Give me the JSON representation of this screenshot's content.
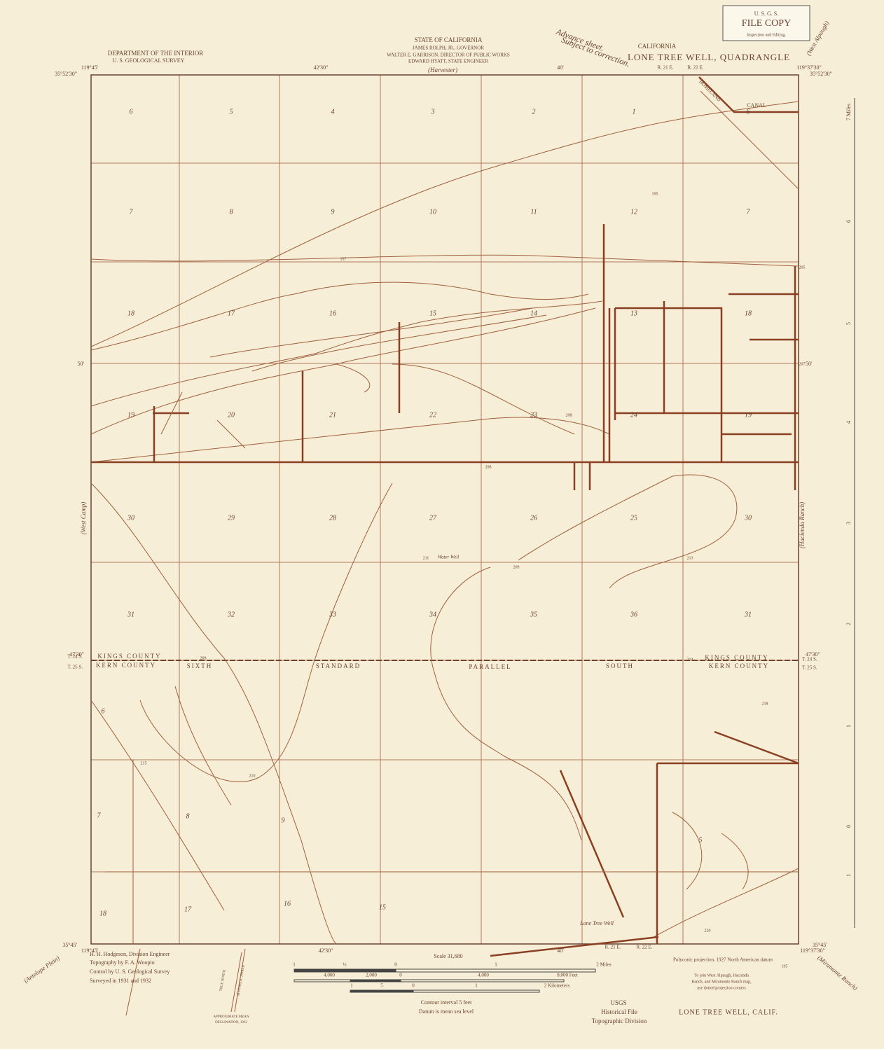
{
  "header": {
    "left": [
      "DEPARTMENT OF THE INTERIOR",
      "U. S. GEOLOGICAL SURVEY"
    ],
    "center": [
      "STATE OF CALIFORNIA",
      "JAMES ROLPH, JR., GOVERNOR",
      "WALTER E. GARRISON, DIRECTOR OF PUBLIC WORKS",
      "EDWARD HYATT, STATE ENGINEER"
    ],
    "state": "CALIFORNIA",
    "title": "LONE TREE WELL, QUADRANGLE",
    "advance": [
      "Advance sheet.",
      "Subject to correction."
    ],
    "stamp": [
      "U. S. G. S.",
      "FILE COPY",
      "Inspection and Editing."
    ]
  },
  "coordinates": [
    "119°45'",
    "35°52'30\"",
    "42'30\"",
    "40'",
    "119°37'30\"",
    "35°52'30\"",
    "50'",
    "50'",
    "47'30\"",
    "47'30\"",
    "35°45'",
    "119°45'",
    "42'30\"",
    "40'",
    "119°37'30\"",
    "35°45'"
  ],
  "townships": [
    "T. 24 S.",
    "T. 25 S.",
    "T. 24 S.",
    "T. 25 S.",
    "R. 21 E.",
    "R. 22 E.",
    "R. 21 E.",
    "R. 22 E."
  ],
  "sections": [
    [
      "6",
      "5",
      "4",
      "3",
      "2",
      "1",
      "6"
    ],
    [
      "7",
      "8",
      "9",
      "10",
      "11",
      "12",
      "7"
    ],
    [
      "18",
      "17",
      "16",
      "15",
      "14",
      "13",
      "18"
    ],
    [
      "19",
      "20",
      "21",
      "22",
      "23",
      "24",
      "19"
    ],
    [
      "30",
      "29",
      "28",
      "27",
      "26",
      "25",
      "30"
    ],
    [
      "31",
      "32",
      "33",
      "34",
      "35",
      "36",
      "31"
    ]
  ],
  "kern_sections": [
    "6",
    "7",
    "8",
    "9",
    "18",
    "17",
    "16",
    "15",
    "5"
  ],
  "places": [
    "(Harvester)",
    "(West Camp)",
    "(Hacienda Ranch)",
    "(Antelope Plain)",
    "(Miramonte Ranch)",
    "(West Alpaugh)"
  ],
  "labels": [
    "HOMELAND",
    "CANAL",
    "KINGS COUNTY",
    "KERN COUNTY",
    "KINGS COUNTY",
    "KERN COUNTY",
    "SIXTH",
    "STANDARD",
    "PARALLEL",
    "SOUTH",
    "Water Well",
    "Lone Tree Well"
  ],
  "elevations": [
    "195",
    "197",
    "195",
    "205",
    "207",
    "208",
    "208",
    "209",
    "209",
    "211",
    "213",
    "214",
    "210",
    "215",
    "218",
    "220"
  ],
  "side_scale": [
    "7 Miles",
    "6",
    "5",
    "4",
    "3",
    "2",
    "1",
    "0",
    "1"
  ],
  "footer": {
    "credits": [
      "H. H. Hodgeson, Division Engineer",
      "Topography by F. A. Woopio",
      "Control by U. S. Geological Survey",
      "Surveyed in 1931 and 1932"
    ],
    "declination": [
      "TRUE NORTH",
      "MAGNETIC NORTH",
      "APPROXIMATE MEAN",
      "DECLINATION, 1932"
    ],
    "scale": "Scale 31,680",
    "miles": [
      "1",
      "½",
      "0",
      "1",
      "2 Miles"
    ],
    "feet": [
      "4,000",
      "2,000",
      "0",
      "4,000",
      "8,000 Feet"
    ],
    "km": [
      "1",
      "5",
      "0",
      "1",
      "2 Kilometers"
    ],
    "contour": [
      "Contour interval 5 feet",
      "Datum is mean sea level"
    ],
    "projection": "Polyconic projection. 1927 North American datum",
    "join": [
      "To join West Alpaugh, Hacienda",
      "Ranch, and Miramonte Ranch map,",
      "use dotted projection corners"
    ],
    "name": "LONE TREE WELL, CALIF.",
    "archive": [
      "USGS",
      "Historical File",
      "Topographic Division"
    ]
  }
}
